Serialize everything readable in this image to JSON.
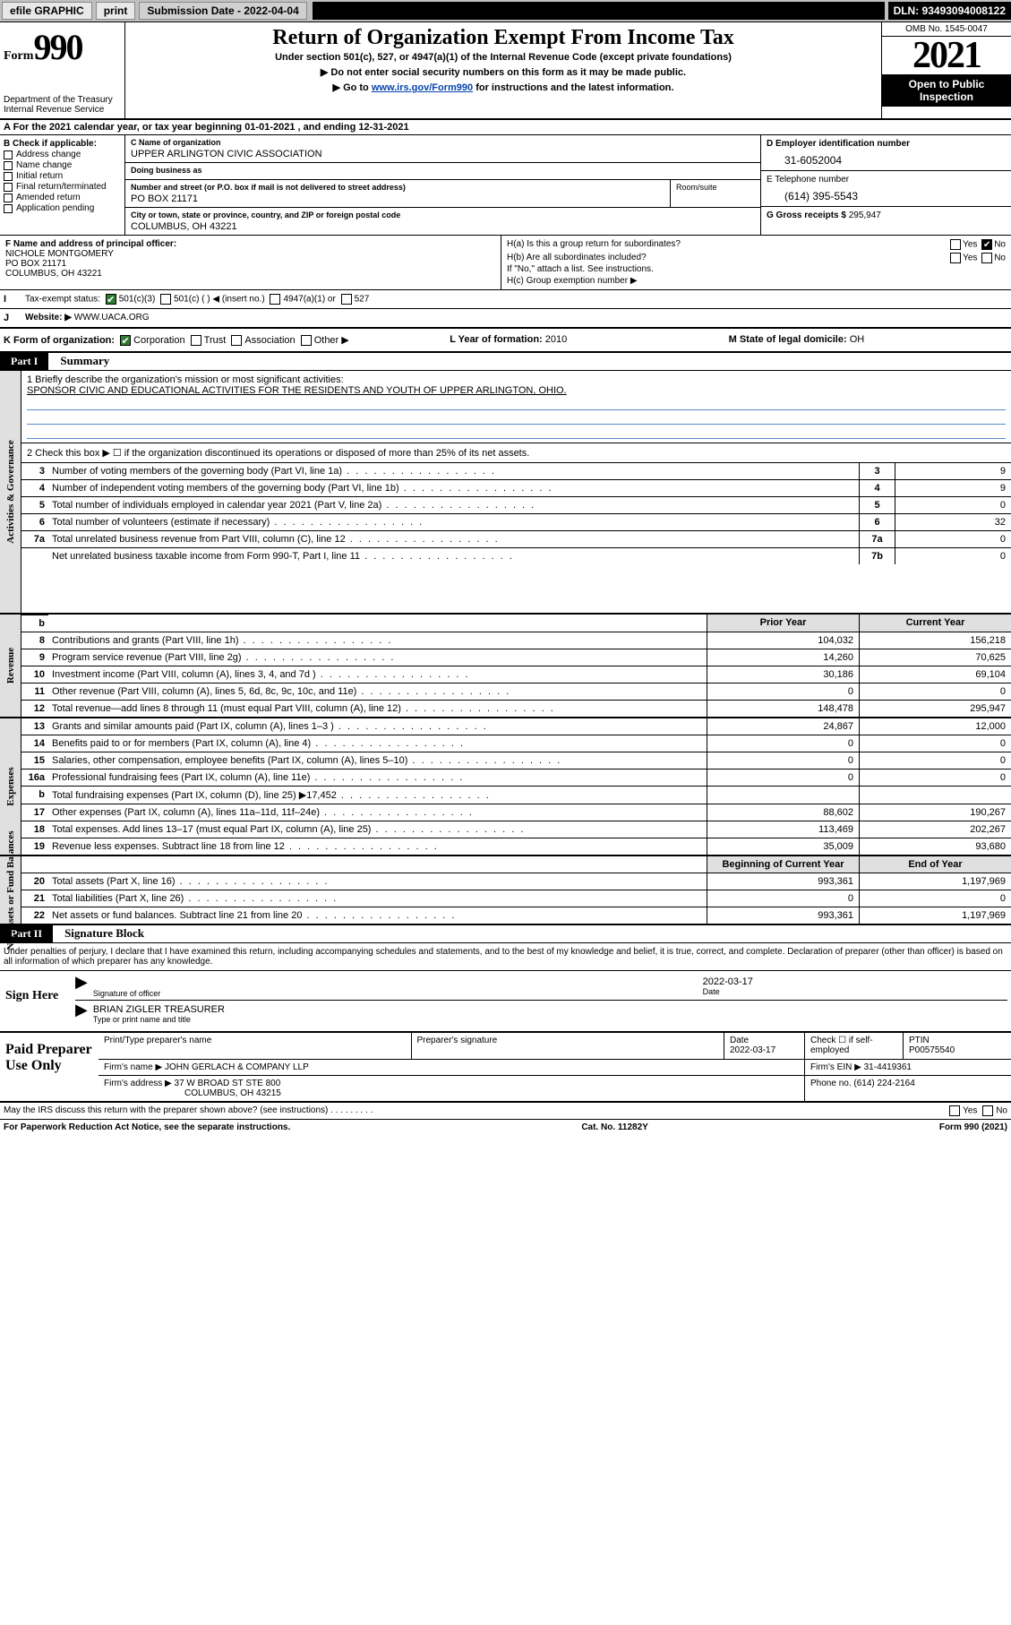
{
  "topbar": {
    "efile": "efile GRAPHIC",
    "print": "print",
    "subdate_label": "Submission Date - 2022-04-04",
    "dln": "DLN: 93493094008122"
  },
  "header": {
    "form_word": "Form",
    "form_num": "990",
    "dept": "Department of the Treasury",
    "irs": "Internal Revenue Service",
    "title": "Return of Organization Exempt From Income Tax",
    "sub1": "Under section 501(c), 527, or 4947(a)(1) of the Internal Revenue Code (except private foundations)",
    "sub2": "▶ Do not enter social security numbers on this form as it may be made public.",
    "sub3_a": "▶ Go to ",
    "sub3_link": "www.irs.gov/Form990",
    "sub3_b": " for instructions and the latest information.",
    "omb": "OMB No. 1545-0047",
    "year": "2021",
    "inspect1": "Open to Public",
    "inspect2": "Inspection"
  },
  "sectionA": "A For the 2021 calendar year, or tax year beginning 01-01-2021   , and ending 12-31-2021",
  "colB": {
    "label": "B Check if applicable:",
    "items": [
      "Address change",
      "Name change",
      "Initial return",
      "Final return/terminated",
      "Amended return",
      "Application pending"
    ]
  },
  "colC": {
    "name_lbl": "C Name of organization",
    "name": "UPPER ARLINGTON CIVIC ASSOCIATION",
    "dba_lbl": "Doing business as",
    "dba": "",
    "addr_lbl": "Number and street (or P.O. box if mail is not delivered to street address)",
    "suite_lbl": "Room/suite",
    "addr": "PO BOX 21171",
    "city_lbl": "City or town, state or province, country, and ZIP or foreign postal code",
    "city": "COLUMBUS, OH  43221"
  },
  "colD": {
    "ein_lbl": "D Employer identification number",
    "ein": "31-6052004",
    "tel_lbl": "E Telephone number",
    "tel": "(614) 395-5543",
    "gross_lbl": "G Gross receipts $",
    "gross": "295,947"
  },
  "rowF": {
    "lbl": "F Name and address of principal officer:",
    "name": "NICHOLE MONTGOMERY",
    "addr1": "PO BOX 21171",
    "addr2": "COLUMBUS, OH  43221"
  },
  "rowH": {
    "ha": "H(a)  Is this a group return for subordinates?",
    "hb": "H(b)  Are all subordinates included?",
    "hb2": "If \"No,\" attach a list. See instructions.",
    "hc": "H(c)  Group exemption number ▶",
    "yes": "Yes",
    "no": "No"
  },
  "rowI": {
    "lbl": "Tax-exempt status:",
    "o1": "501(c)(3)",
    "o2": "501(c) (  ) ◀ (insert no.)",
    "o3": "4947(a)(1) or",
    "o4": "527"
  },
  "rowJ": {
    "lbl": "Website: ▶",
    "val": "WWW.UACA.ORG"
  },
  "rowK": {
    "lbl": "K Form of organization:",
    "o1": "Corporation",
    "o2": "Trust",
    "o3": "Association",
    "o4": "Other ▶"
  },
  "rowL": {
    "lbl": "L Year of formation:",
    "val": "2010"
  },
  "rowM": {
    "lbl": "M State of legal domicile:",
    "val": "OH"
  },
  "part1": {
    "hdr": "Part I",
    "title": "Summary"
  },
  "mission": {
    "q": "1  Briefly describe the organization's mission or most significant activities:",
    "text": "SPONSOR CIVIC AND EDUCATIONAL ACTIVITIES FOR THE RESIDENTS AND YOUTH OF UPPER ARLINGTON, OHIO."
  },
  "check2": "2  Check this box ▶ ☐  if the organization discontinued its operations or disposed of more than 25% of its net assets.",
  "vtabs": {
    "gov": "Activities & Governance",
    "rev": "Revenue",
    "exp": "Expenses",
    "net": "Net Assets or Fund Balances"
  },
  "gov_rows": [
    {
      "n": "3",
      "t": "Number of voting members of the governing body (Part VI, line 1a)",
      "c": "3",
      "v": "9"
    },
    {
      "n": "4",
      "t": "Number of independent voting members of the governing body (Part VI, line 1b)",
      "c": "4",
      "v": "9"
    },
    {
      "n": "5",
      "t": "Total number of individuals employed in calendar year 2021 (Part V, line 2a)",
      "c": "5",
      "v": "0"
    },
    {
      "n": "6",
      "t": "Total number of volunteers (estimate if necessary)",
      "c": "6",
      "v": "32"
    },
    {
      "n": "7a",
      "t": "Total unrelated business revenue from Part VIII, column (C), line 12",
      "c": "7a",
      "v": "0"
    },
    {
      "n": "",
      "t": "Net unrelated business taxable income from Form 990-T, Part I, line 11",
      "c": "7b",
      "v": "0"
    }
  ],
  "col_hdrs": {
    "prior": "Prior Year",
    "curr": "Current Year"
  },
  "rev_rows": [
    {
      "n": "8",
      "t": "Contributions and grants (Part VIII, line 1h)",
      "p": "104,032",
      "c": "156,218"
    },
    {
      "n": "9",
      "t": "Program service revenue (Part VIII, line 2g)",
      "p": "14,260",
      "c": "70,625"
    },
    {
      "n": "10",
      "t": "Investment income (Part VIII, column (A), lines 3, 4, and 7d )",
      "p": "30,186",
      "c": "69,104"
    },
    {
      "n": "11",
      "t": "Other revenue (Part VIII, column (A), lines 5, 6d, 8c, 9c, 10c, and 11e)",
      "p": "0",
      "c": "0"
    },
    {
      "n": "12",
      "t": "Total revenue—add lines 8 through 11 (must equal Part VIII, column (A), line 12)",
      "p": "148,478",
      "c": "295,947"
    }
  ],
  "exp_rows": [
    {
      "n": "13",
      "t": "Grants and similar amounts paid (Part IX, column (A), lines 1–3 )",
      "p": "24,867",
      "c": "12,000"
    },
    {
      "n": "14",
      "t": "Benefits paid to or for members (Part IX, column (A), line 4)",
      "p": "0",
      "c": "0"
    },
    {
      "n": "15",
      "t": "Salaries, other compensation, employee benefits (Part IX, column (A), lines 5–10)",
      "p": "0",
      "c": "0"
    },
    {
      "n": "16a",
      "t": "Professional fundraising fees (Part IX, column (A), line 11e)",
      "p": "0",
      "c": "0"
    },
    {
      "n": "b",
      "t": "Total fundraising expenses (Part IX, column (D), line 25) ▶17,452",
      "p": "",
      "c": "",
      "grey": true
    },
    {
      "n": "17",
      "t": "Other expenses (Part IX, column (A), lines 11a–11d, 11f–24e)",
      "p": "88,602",
      "c": "190,267"
    },
    {
      "n": "18",
      "t": "Total expenses. Add lines 13–17 (must equal Part IX, column (A), line 25)",
      "p": "113,469",
      "c": "202,267"
    },
    {
      "n": "19",
      "t": "Revenue less expenses. Subtract line 18 from line 12",
      "p": "35,009",
      "c": "93,680"
    }
  ],
  "net_hdrs": {
    "prior": "Beginning of Current Year",
    "curr": "End of Year"
  },
  "net_rows": [
    {
      "n": "20",
      "t": "Total assets (Part X, line 16)",
      "p": "993,361",
      "c": "1,197,969"
    },
    {
      "n": "21",
      "t": "Total liabilities (Part X, line 26)",
      "p": "0",
      "c": "0"
    },
    {
      "n": "22",
      "t": "Net assets or fund balances. Subtract line 21 from line 20",
      "p": "993,361",
      "c": "1,197,969"
    }
  ],
  "part2": {
    "hdr": "Part II",
    "title": "Signature Block"
  },
  "penalty": "Under penalties of perjury, I declare that I have examined this return, including accompanying schedules and statements, and to the best of my knowledge and belief, it is true, correct, and complete. Declaration of preparer (other than officer) is based on all information of which preparer has any knowledge.",
  "sign": {
    "here": "Sign Here",
    "sig_lbl": "Signature of officer",
    "date_lbl": "Date",
    "date": "2022-03-17",
    "name": "BRIAN ZIGLER  TREASURER",
    "name_lbl": "Type or print name and title"
  },
  "prep": {
    "hdr": "Paid Preparer Use Only",
    "r1c1_lbl": "Print/Type preparer's name",
    "r1c2_lbl": "Preparer's signature",
    "r1c3_lbl": "Date",
    "r1c3": "2022-03-17",
    "r1c4_lbl": "Check ☐ if self-employed",
    "r1c5_lbl": "PTIN",
    "r1c5": "P00575540",
    "r2c1_lbl": "Firm's name    ▶",
    "r2c1": "JOHN GERLACH & COMPANY LLP",
    "r2c2_lbl": "Firm's EIN ▶",
    "r2c2": "31-4419361",
    "r3c1_lbl": "Firm's address ▶",
    "r3c1a": "37 W BROAD ST STE 800",
    "r3c1b": "COLUMBUS, OH  43215",
    "r3c2_lbl": "Phone no.",
    "r3c2": "(614) 224-2164"
  },
  "footer": {
    "discuss": "May the IRS discuss this return with the preparer shown above? (see instructions)",
    "yes": "Yes",
    "no": "No",
    "pra": "For Paperwork Reduction Act Notice, see the separate instructions.",
    "cat": "Cat. No. 11282Y",
    "form": "Form 990 (2021)"
  }
}
